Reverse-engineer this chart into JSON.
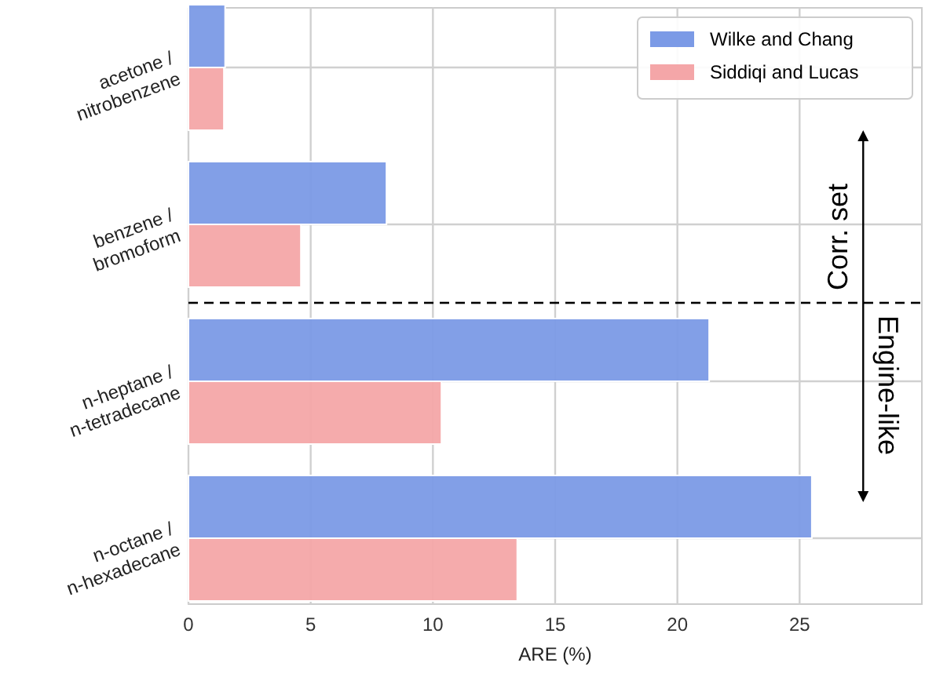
{
  "chart_data": {
    "type": "bar",
    "orientation": "horizontal",
    "xlabel": "ARE (%)",
    "categories": [
      "acetone /\nnitrobenzene",
      "benzene /\nbromoform",
      "n-heptane /\nn-tetradecane",
      "n-octane /\nn-hexadecane"
    ],
    "series": [
      {
        "name": "Wilke and Chang",
        "color": "#7b9ae6",
        "values": [
          1.5,
          8.1,
          21.3,
          25.5
        ]
      },
      {
        "name": "Siddiqi and Lucas",
        "color": "#f4a6a8",
        "values": [
          1.45,
          4.6,
          10.35,
          13.45
        ]
      }
    ],
    "xlim": [
      0,
      30
    ],
    "xticks": [
      0,
      5,
      10,
      15,
      20,
      25
    ],
    "grid": true,
    "legend": "top right",
    "annotations": [
      "Corr. set",
      "Engine-like"
    ]
  }
}
